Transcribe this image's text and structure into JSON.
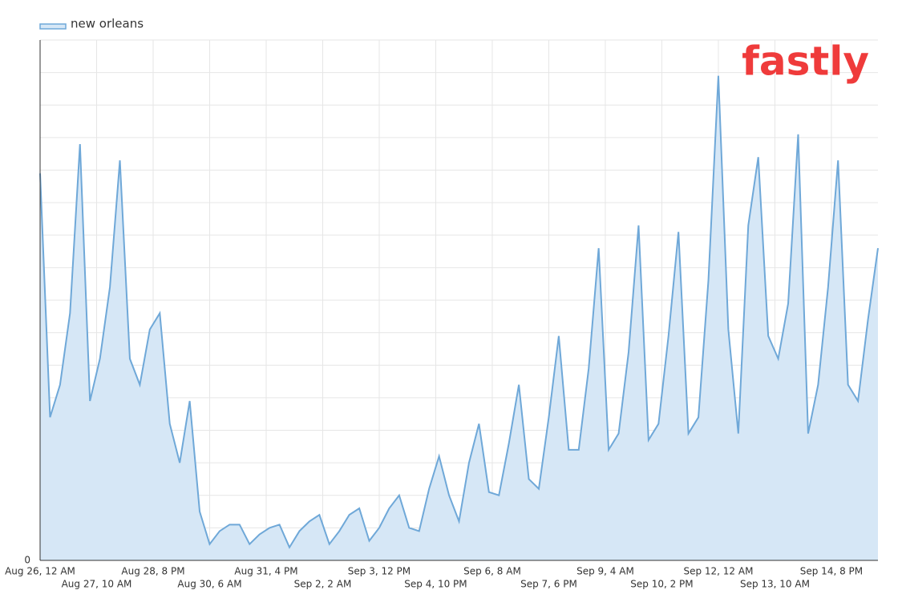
{
  "chart_data": {
    "type": "area",
    "logo": "fastly",
    "xticks": [
      {
        "value": 0,
        "label": "Aug 26, 12 AM"
      },
      {
        "value": 34,
        "label": "Aug 27, 10 AM"
      },
      {
        "value": 68,
        "label": "Aug 28, 8 PM"
      },
      {
        "value": 102,
        "label": "Aug 30, 6 AM"
      },
      {
        "value": 136,
        "label": "Aug 31, 4 PM"
      },
      {
        "value": 170,
        "label": "Sep 2, 2 AM"
      },
      {
        "value": 204,
        "label": "Sep 3, 12 PM"
      },
      {
        "value": 238,
        "label": "Sep 4, 10 PM"
      },
      {
        "value": 272,
        "label": "Sep 6, 8 AM"
      },
      {
        "value": 306,
        "label": "Sep 7, 6 PM"
      },
      {
        "value": 340,
        "label": "Sep 9, 4 AM"
      },
      {
        "value": 374,
        "label": "Sep 10, 2 PM"
      },
      {
        "value": 408,
        "label": "Sep 12, 12 AM"
      },
      {
        "value": 442,
        "label": "Sep 13, 10 AM"
      },
      {
        "value": 476,
        "label": "Sep 14, 8 PM"
      }
    ],
    "xlim": [
      0,
      504
    ],
    "ylim": [
      0,
      16
    ],
    "yticks": [
      0
    ],
    "ygrid": [
      1,
      2,
      3,
      4,
      5,
      6,
      7,
      8,
      9,
      10,
      11,
      12,
      13,
      14,
      15,
      16
    ],
    "grid": true,
    "x": [
      0,
      6,
      12,
      18,
      24,
      30,
      36,
      42,
      48,
      54,
      60,
      66,
      72,
      78,
      84,
      90,
      96,
      102,
      108,
      114,
      120,
      126,
      132,
      138,
      144,
      150,
      156,
      162,
      168,
      174,
      180,
      186,
      192,
      198,
      204,
      210,
      216,
      222,
      228,
      234,
      240,
      246,
      252,
      258,
      264,
      270,
      276,
      282,
      288,
      294,
      300,
      306,
      312,
      318,
      324,
      330,
      336,
      342,
      348,
      354,
      360,
      366,
      372,
      378,
      384,
      390,
      396,
      402,
      408,
      414,
      420,
      426,
      432,
      438,
      444,
      450,
      456,
      462,
      468,
      474,
      480,
      486,
      492,
      498,
      504
    ],
    "series": [
      {
        "name": "new orleans",
        "color": "#6fa8d8",
        "fill": "#d6e7f6",
        "values": [
          11.9,
          4.4,
          5.4,
          7.6,
          12.8,
          4.9,
          6.2,
          8.4,
          12.3,
          6.2,
          5.4,
          7.1,
          7.6,
          4.2,
          3.0,
          4.9,
          1.5,
          0.5,
          0.9,
          1.1,
          1.1,
          0.5,
          0.8,
          1.0,
          1.1,
          0.4,
          0.9,
          1.2,
          1.4,
          0.5,
          0.9,
          1.4,
          1.6,
          0.6,
          1.0,
          1.6,
          2.0,
          1.0,
          0.9,
          2.2,
          3.2,
          2.0,
          1.2,
          3.0,
          4.2,
          2.1,
          2.0,
          3.6,
          5.4,
          2.5,
          2.2,
          4.4,
          6.9,
          3.4,
          3.4,
          5.9,
          9.6,
          3.4,
          3.9,
          6.4,
          10.3,
          3.7,
          4.2,
          6.9,
          10.1,
          3.9,
          4.4,
          8.6,
          14.9,
          7.1,
          3.9,
          10.3,
          12.4,
          6.9,
          6.2,
          7.9,
          13.1,
          3.9,
          5.4,
          8.4,
          12.3,
          5.4,
          4.9,
          7.4,
          9.6
        ]
      }
    ]
  }
}
